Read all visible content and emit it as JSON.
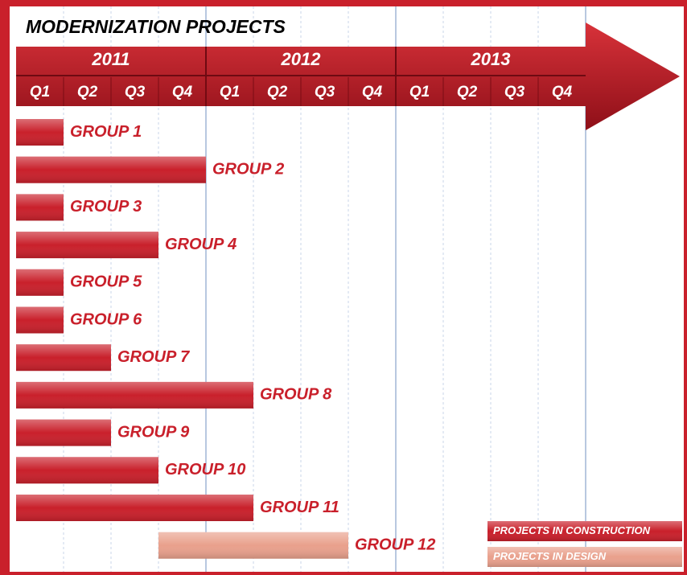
{
  "chart_data": {
    "type": "gantt",
    "title": "MODERNIZATION PROJECTS",
    "years": [
      "2011",
      "2012",
      "2013"
    ],
    "quarters": [
      "Q1",
      "Q2",
      "Q3",
      "Q4",
      "Q1",
      "Q2",
      "Q3",
      "Q4",
      "Q1",
      "Q2",
      "Q3",
      "Q4"
    ],
    "categories": [
      "GROUP 1",
      "GROUP 2",
      "GROUP 3",
      "GROUP 4",
      "GROUP 5",
      "GROUP 6",
      "GROUP 7",
      "GROUP 8",
      "GROUP 9",
      "GROUP 10",
      "GROUP 11",
      "GROUP 12"
    ],
    "xlim": [
      0,
      12
    ],
    "xticks": [
      1,
      2,
      3,
      4,
      5,
      6,
      7,
      8,
      9,
      10,
      11,
      12
    ],
    "grid": true,
    "legend": "lower right",
    "series": [
      {
        "name": "PROJECTS IN CONSTRUCTION",
        "color": "#c9202b",
        "start": [
          0,
          0,
          0,
          0,
          0,
          0,
          0,
          0,
          0,
          0,
          0,
          null
        ],
        "end": [
          1,
          4,
          1,
          3,
          1,
          1,
          2,
          5,
          2,
          3,
          5,
          null
        ]
      },
      {
        "name": "PROJECTS IN DESIGN",
        "color": "#e9a08c",
        "start": [
          null,
          null,
          null,
          null,
          null,
          null,
          null,
          null,
          null,
          null,
          null,
          3
        ],
        "end": [
          null,
          null,
          null,
          null,
          null,
          null,
          null,
          null,
          null,
          null,
          null,
          7
        ]
      }
    ]
  }
}
